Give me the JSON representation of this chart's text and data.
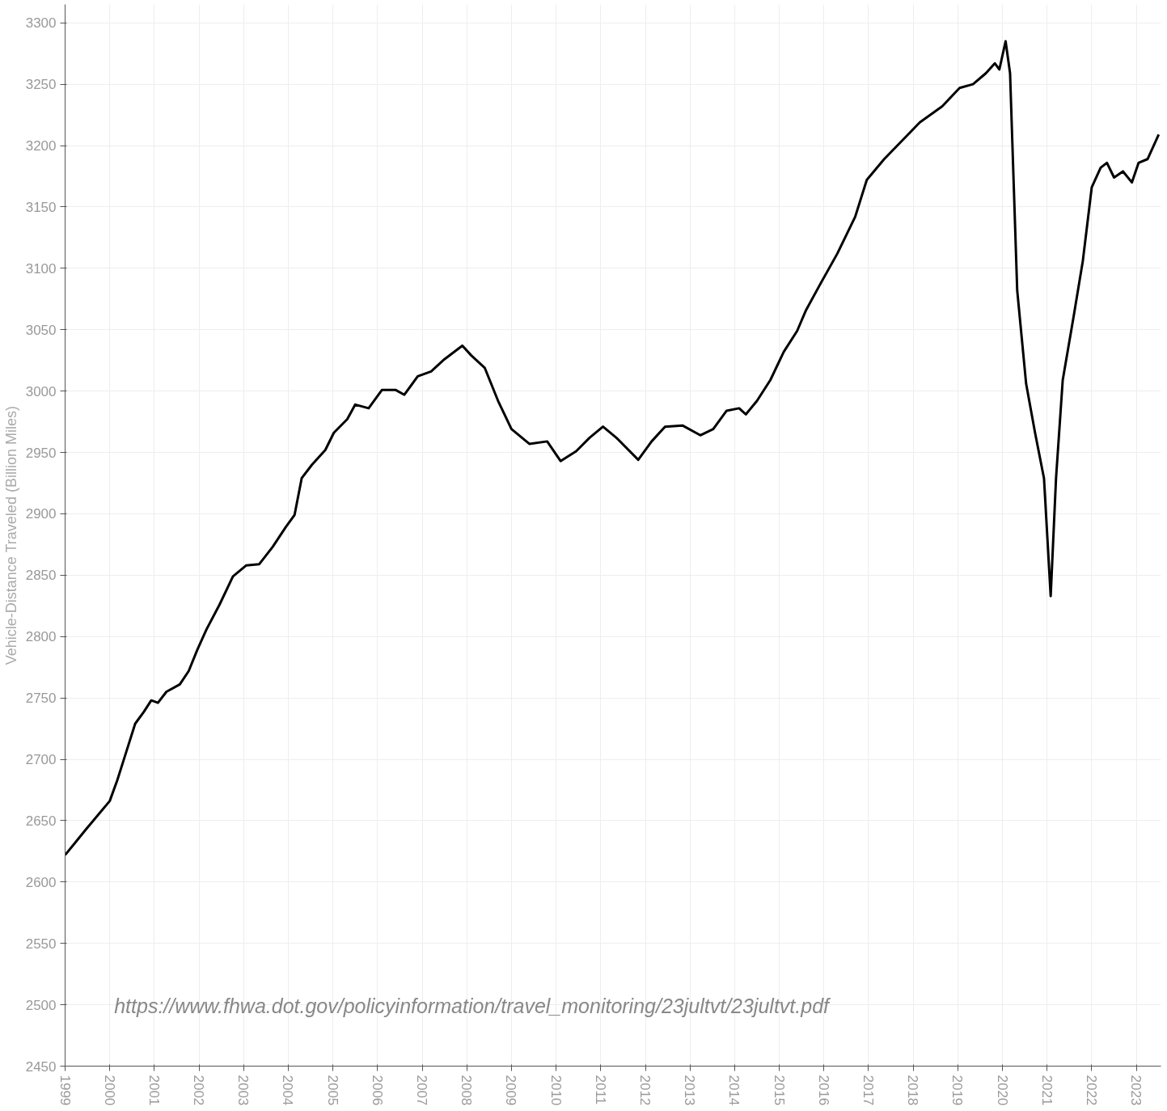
{
  "chart_data": {
    "type": "line",
    "ylabel": "Vehicle-Distance Traveled (Billion Miles)",
    "x": [
      1999.0,
      1999.18,
      1999.47,
      1999.77,
      2000.0,
      2000.17,
      2000.37,
      2000.57,
      2000.77,
      2000.93,
      2001.08,
      2001.27,
      2001.57,
      2001.77,
      2001.96,
      2002.17,
      2002.46,
      2002.76,
      2003.06,
      2003.35,
      2003.65,
      2003.94,
      2004.14,
      2004.3,
      2004.53,
      2004.83,
      2005.02,
      2005.32,
      2005.5,
      2005.8,
      2006.1,
      2006.4,
      2006.6,
      2006.9,
      2007.2,
      2007.5,
      2007.9,
      2008.1,
      2008.4,
      2008.7,
      2009.0,
      2009.4,
      2009.8,
      2010.1,
      2010.45,
      2010.75,
      2011.05,
      2011.35,
      2011.84,
      2012.14,
      2012.44,
      2012.83,
      2013.23,
      2013.52,
      2013.82,
      2014.1,
      2014.25,
      2014.5,
      2014.8,
      2015.1,
      2015.4,
      2015.6,
      2015.9,
      2016.3,
      2016.7,
      2016.96,
      2017.35,
      2017.75,
      2018.15,
      2018.65,
      2019.04,
      2019.34,
      2019.63,
      2019.83,
      2019.93,
      2020.07,
      2020.17,
      2020.33,
      2020.53,
      2020.73,
      2020.93,
      2021.08,
      2021.2,
      2021.35,
      2021.6,
      2021.8,
      2022.0,
      2022.2,
      2022.34,
      2022.5,
      2022.7,
      2022.9,
      2023.05,
      2023.25,
      2023.5
    ],
    "series": [
      {
        "color": "#000000",
        "values": [
          2622,
          2630,
          2643,
          2656,
          2666,
          2683,
          2706,
          2729,
          2739,
          2748,
          2746,
          2755,
          2761,
          2772,
          2789,
          2806,
          2826,
          2849,
          2858,
          2859,
          2873,
          2889,
          2899,
          2929,
          2940,
          2952,
          2966,
          2977,
          2989,
          2986,
          3001,
          3001,
          2997,
          3012,
          3016,
          3026,
          3037,
          3029,
          3019,
          2992,
          2969,
          2957,
          2959,
          2943,
          2951,
          2962,
          2971,
          2962,
          2944,
          2959,
          2971,
          2972,
          2964,
          2969,
          2984,
          2986,
          2981,
          2992,
          3009,
          3032,
          3049,
          3066,
          3086,
          3112,
          3142,
          3172,
          3189,
          3204,
          3219,
          3232,
          3247,
          3250,
          3259,
          3267,
          3262,
          3285,
          3259,
          3082,
          3006,
          2966,
          2929,
          2833,
          2929,
          3009,
          3062,
          3106,
          3166,
          3182,
          3186,
          3174,
          3179,
          3170,
          3186,
          3189,
          3209
        ]
      }
    ],
    "xlim": [
      1999,
      2023.55
    ],
    "ylim": [
      2450,
      3315
    ],
    "xticks": [
      1999,
      2000,
      2001,
      2002,
      2003,
      2004,
      2005,
      2006,
      2007,
      2008,
      2009,
      2010,
      2011,
      2012,
      2013,
      2014,
      2015,
      2016,
      2017,
      2018,
      2019,
      2020,
      2021,
      2022,
      2023
    ],
    "yticks": [
      2450,
      2500,
      2550,
      2600,
      2650,
      2700,
      2750,
      2800,
      2850,
      2900,
      2950,
      3000,
      3050,
      3100,
      3150,
      3200,
      3250,
      3300
    ],
    "grid": true,
    "marker": "none",
    "line_style": "solid",
    "annotations": [
      "https://www.fhwa.dot.gov/policyinformation/travel_monitoring/23jultvt/23jultvt.pdf"
    ]
  }
}
